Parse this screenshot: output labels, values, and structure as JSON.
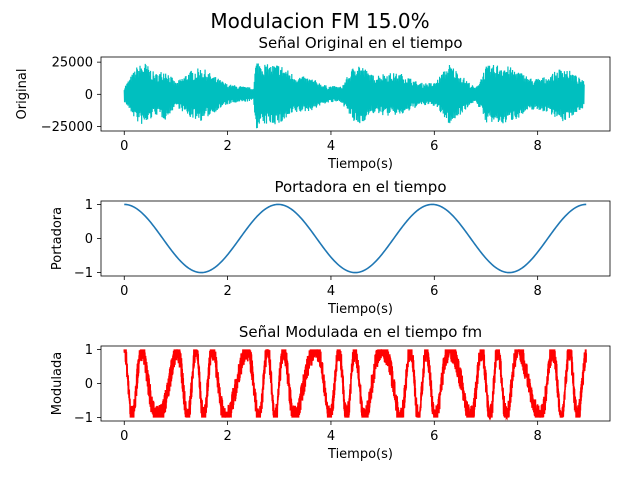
{
  "figure": {
    "suptitle": "Modulacion FM 15.0%"
  },
  "chart_data": [
    {
      "type": "line",
      "title": "Señal Original en el tiempo",
      "xlabel": "Tiempo(s)",
      "ylabel": "Original",
      "xlim": [
        -0.45,
        9.4
      ],
      "ylim": [
        -28500,
        29000
      ],
      "xticks": [
        0,
        2,
        4,
        6,
        8
      ],
      "xtick_labels": [
        "0",
        "2",
        "4",
        "6",
        "8"
      ],
      "yticks": [
        25000,
        0,
        -25000
      ],
      "ytick_labels": [
        "25000",
        "0",
        "−25000"
      ],
      "color": "#00bfbf",
      "series": [
        {
          "x": [
            0,
            0.25,
            0.4,
            0.6,
            0.8,
            1.0,
            1.25,
            1.5,
            1.75,
            2.0,
            2.25,
            2.5,
            2.55,
            2.8,
            3.0,
            3.3,
            3.6,
            3.9,
            4.2,
            4.5,
            4.8,
            5.1,
            5.4,
            5.7,
            6.0,
            6.3,
            6.6,
            6.8,
            7.0,
            7.3,
            7.6,
            7.9,
            8.2,
            8.5,
            8.9
          ],
          "values": [
            6000,
            22000,
            25000,
            16000,
            20000,
            9000,
            18000,
            21000,
            14000,
            8000,
            6500,
            5000,
            27000,
            23000,
            24000,
            15000,
            13000,
            7000,
            6000,
            26000,
            15000,
            17000,
            16000,
            9000,
            9000,
            24000,
            12000,
            5000,
            22000,
            24000,
            19000,
            12000,
            14000,
            22000,
            10000
          ]
        }
      ]
    },
    {
      "type": "line",
      "title": "Portadora en el tiempo",
      "xlabel": "Tiempo(s)",
      "ylabel": "Portadora",
      "xlim": [
        -0.45,
        9.4
      ],
      "ylim": [
        -1.1,
        1.1
      ],
      "xticks": [
        0,
        2,
        4,
        6,
        8
      ],
      "xtick_labels": [
        "0",
        "2",
        "4",
        "6",
        "8"
      ],
      "yticks": [
        1,
        0,
        -1
      ],
      "ytick_labels": [
        "1",
        "0",
        "−1"
      ],
      "color": "#1f77b4",
      "series": [
        {
          "x": [
            0,
            0.75,
            1.5,
            2.25,
            2.98,
            3.73,
            4.47,
            5.22,
            5.96,
            6.71,
            7.45,
            8.2,
            8.94
          ],
          "values": [
            1,
            0,
            -1,
            0,
            1,
            0,
            -1,
            0,
            1,
            0,
            -1,
            0,
            1
          ]
        }
      ]
    },
    {
      "type": "line",
      "title": "Señal Modulada en el tiempo fm",
      "xlabel": "Tiempo(s)",
      "ylabel": "Modulada",
      "xlim": [
        -0.45,
        9.4
      ],
      "ylim": [
        -1.1,
        1.1
      ],
      "xticks": [
        0,
        2,
        4,
        6,
        8
      ],
      "xtick_labels": [
        "0",
        "2",
        "4",
        "6",
        "8"
      ],
      "yticks": [
        1,
        0,
        -1
      ],
      "ytick_labels": [
        "1",
        "0",
        "−1"
      ],
      "color": "#ff0000",
      "series": [
        {
          "x": [
            0,
            8.94
          ],
          "values": [
            -1,
            1
          ]
        }
      ]
    }
  ]
}
